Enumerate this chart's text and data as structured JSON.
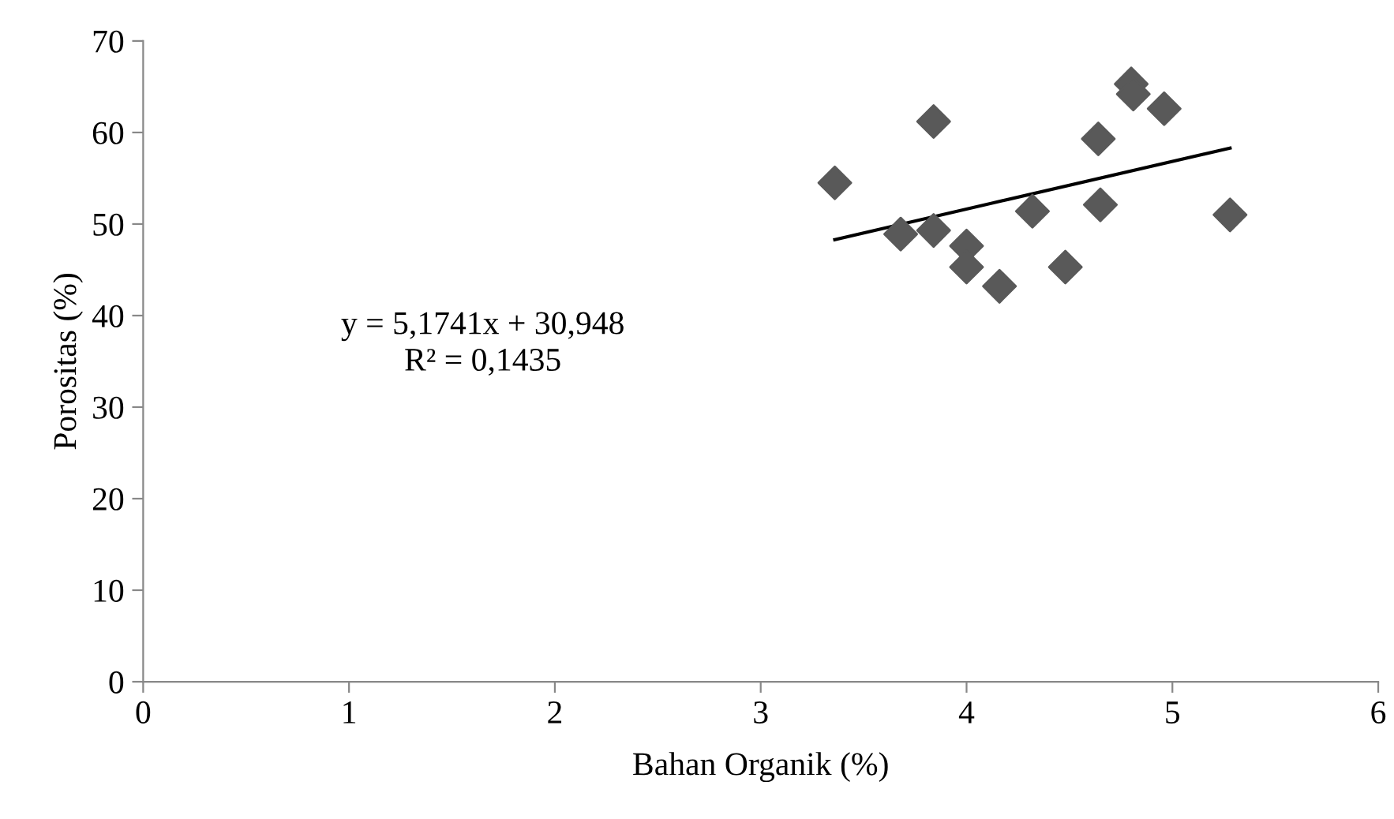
{
  "chart_data": {
    "type": "scatter",
    "xlabel": "Bahan Organik (%)",
    "ylabel": "Porositas (%)",
    "annotations": [
      "y = 5,1741x + 30,948",
      "R² = 0,1435"
    ],
    "series": [
      {
        "color": "#595959",
        "marker": "diamond",
        "x": [
          3.36,
          3.68,
          3.84,
          3.84,
          4.0,
          4.0,
          4.16,
          4.32,
          4.48,
          4.64,
          4.65,
          4.8,
          4.81,
          4.96,
          5.28
        ],
        "values": [
          54.5,
          48.9,
          49.3,
          61.2,
          47.6,
          45.3,
          43.2,
          51.4,
          45.3,
          59.3,
          52.1,
          65.3,
          64.2,
          62.6,
          51.0
        ]
      },
      {
        "type": "line",
        "color": "#000000",
        "marker": "none",
        "x": [
          3.36,
          5.28
        ],
        "values": [
          48.3,
          58.3
        ]
      }
    ],
    "xlim": [
      0,
      6
    ],
    "xticks": [
      0,
      1,
      2,
      3,
      4,
      5,
      6
    ],
    "ylim": [
      0,
      70
    ],
    "yticks": [
      0,
      10,
      20,
      30,
      40,
      50,
      60,
      70
    ],
    "grid": false,
    "legend": false
  }
}
